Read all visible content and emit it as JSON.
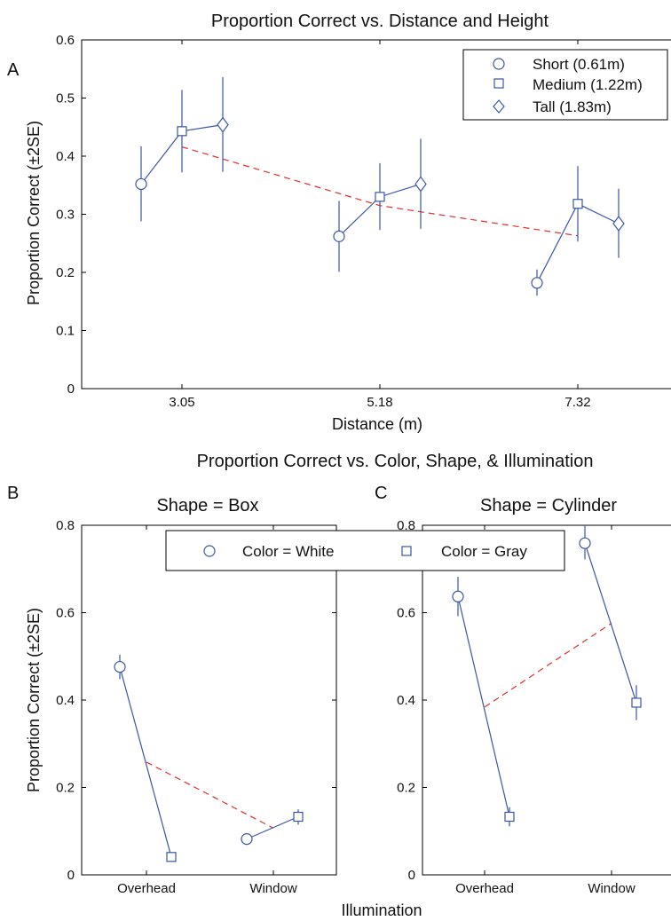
{
  "figure": {
    "panel_a": {
      "letter": "A",
      "title": "Proportion Correct vs. Distance and Height",
      "ylabel": "Proportion Correct (±2SE)",
      "xlabel": "Distance (m)",
      "legend_labels": [
        "Short (0.61m)",
        "Medium (1.22m)",
        "Tall (1.83m)"
      ]
    },
    "bottom_title": "Proportion Correct vs. Color, Shape, & Illumination",
    "panel_b": {
      "letter": "B",
      "title": "Shape = Box"
    },
    "panel_c": {
      "letter": "C",
      "title": "Shape = Cylinder"
    },
    "bottom_ylabel": "Proportion Correct (±2SE)",
    "bottom_xlabel": "Illumination",
    "bottom_legend_labels": [
      "Color = White",
      "Color = Gray"
    ]
  },
  "colors": {
    "series": "#3a56a6",
    "trend": "#e0302a"
  },
  "chart_data": [
    {
      "type": "line",
      "title": "Proportion Correct vs. Distance and Height",
      "xlabel": "Distance (m)",
      "ylabel": "Proportion Correct (±2SE)",
      "categories": [
        "3.05",
        "5.18",
        "7.32"
      ],
      "ylim": [
        0,
        0.6
      ],
      "yticks": [
        0,
        0.1,
        0.2,
        0.3,
        0.4,
        0.5,
        0.6
      ],
      "series": [
        {
          "name": "Short (0.61m)",
          "marker": "circle",
          "values": [
            0.352,
            0.262,
            0.182
          ],
          "lower": [
            0.288,
            0.201,
            0.16
          ],
          "upper": [
            0.417,
            0.323,
            0.205
          ]
        },
        {
          "name": "Medium (1.22m)",
          "marker": "square",
          "values": [
            0.443,
            0.33,
            0.318
          ],
          "lower": [
            0.372,
            0.273,
            0.253
          ],
          "upper": [
            0.514,
            0.388,
            0.383
          ]
        },
        {
          "name": "Tall (1.83m)",
          "marker": "diamond",
          "values": [
            0.454,
            0.352,
            0.284
          ],
          "lower": [
            0.373,
            0.275,
            0.225
          ],
          "upper": [
            0.536,
            0.43,
            0.344
          ]
        }
      ],
      "trend": {
        "style": "dashed",
        "values": [
          0.416,
          0.315,
          0.263
        ]
      },
      "legend_position": "top-right",
      "grid": false
    },
    {
      "type": "line",
      "title": "Shape = Box",
      "xlabel": "Illumination",
      "ylabel": "Proportion Correct (±2SE)",
      "categories": [
        "Overhead",
        "Window"
      ],
      "ylim": [
        0,
        0.8
      ],
      "yticks": [
        0,
        0.2,
        0.4,
        0.6,
        0.8
      ],
      "series": [
        {
          "name": "Color = White",
          "marker": "circle",
          "values": [
            0.476,
            0.082
          ],
          "lower": [
            0.448,
            0.074
          ],
          "upper": [
            0.504,
            0.09
          ]
        },
        {
          "name": "Color = Gray",
          "marker": "square",
          "values": [
            0.041,
            0.133
          ],
          "lower": [
            0.036,
            0.115
          ],
          "upper": [
            0.046,
            0.15
          ]
        }
      ],
      "trend": {
        "style": "dashed",
        "values": [
          0.258,
          0.107
        ]
      },
      "legend_position": "top",
      "grid": false
    },
    {
      "type": "line",
      "title": "Shape = Cylinder",
      "xlabel": "Illumination",
      "ylabel": "Proportion Correct (±2SE)",
      "categories": [
        "Overhead",
        "Window"
      ],
      "ylim": [
        0,
        0.8
      ],
      "yticks": [
        0,
        0.2,
        0.4,
        0.6,
        0.8
      ],
      "series": [
        {
          "name": "Color = White",
          "marker": "circle",
          "values": [
            0.637,
            0.759
          ],
          "lower": [
            0.592,
            0.722
          ],
          "upper": [
            0.682,
            0.8
          ]
        },
        {
          "name": "Color = Gray",
          "marker": "square",
          "values": [
            0.133,
            0.394
          ],
          "lower": [
            0.111,
            0.354
          ],
          "upper": [
            0.155,
            0.434
          ]
        }
      ],
      "trend": {
        "style": "dashed",
        "values": [
          0.384,
          0.576
        ]
      },
      "legend_position": "top",
      "grid": false
    }
  ]
}
